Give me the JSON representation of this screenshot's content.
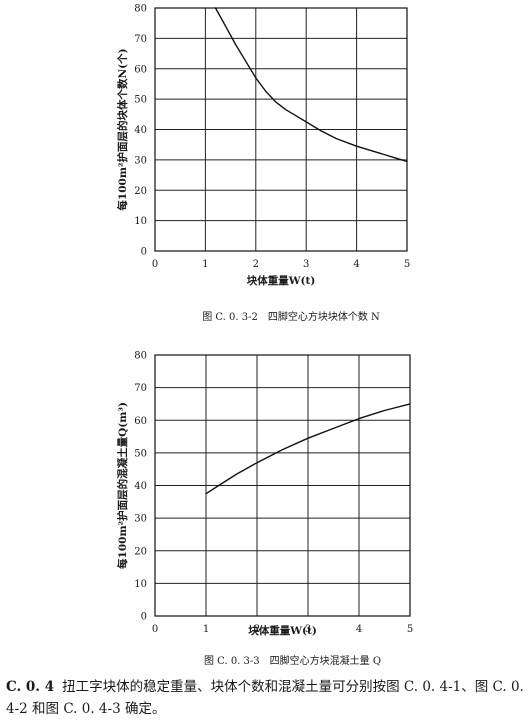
{
  "chart_data": [
    {
      "type": "line",
      "caption": "图 C. 0. 3-2　四脚空心方块块体个数 N",
      "xlabel": "块体重量W(t)",
      "ylabel": "每100m²护面层的块体个数N(个)",
      "xlim": [
        0,
        5
      ],
      "ylim": [
        0,
        80
      ],
      "x_ticks": [
        "0",
        "1",
        "2",
        "3",
        "4",
        "5"
      ],
      "y_ticks": [
        "0",
        "10",
        "20",
        "30",
        "40",
        "50",
        "60",
        "70",
        "80"
      ],
      "grid": true,
      "series": [
        {
          "x": [
            1.2,
            1.4,
            1.6,
            1.8,
            2.0,
            2.2,
            2.4,
            2.6,
            2.8,
            3.0,
            3.3,
            3.6,
            4.0,
            4.4,
            4.8,
            5.0
          ],
          "y": [
            80,
            74,
            68,
            62.5,
            57,
            52.5,
            49,
            46.5,
            44.5,
            42.5,
            39.5,
            37,
            34.5,
            32.5,
            30.5,
            29.5
          ]
        }
      ]
    },
    {
      "type": "line",
      "caption": "图 C. 0. 3-3　四脚空心方块混凝土量 Q",
      "xlabel": "块体重量W(t)",
      "ylabel": "每100m²护面层的混凝土量Q(m³)",
      "xlim": [
        0,
        5
      ],
      "ylim": [
        0,
        80
      ],
      "x_ticks": [
        "0",
        "1",
        "2",
        "3",
        "4",
        "5"
      ],
      "y_ticks": [
        "0",
        "10",
        "20",
        "30",
        "40",
        "50",
        "60",
        "70",
        "80"
      ],
      "grid": true,
      "series": [
        {
          "x": [
            1.0,
            1.3,
            1.6,
            2.0,
            2.5,
            3.0,
            3.5,
            4.0,
            4.5,
            5.0
          ],
          "y": [
            37.5,
            40.5,
            43.5,
            47,
            51,
            54.5,
            57.5,
            60.5,
            63,
            65
          ]
        }
      ]
    }
  ],
  "paragraph": {
    "number": "C. 0. 4",
    "text": "扭工字块体的稳定重量、块体个数和混凝土量可分别按图 C. 0. 4-1、图 C. 0. 4-2 和图 C. 0. 4-3 确定。"
  }
}
